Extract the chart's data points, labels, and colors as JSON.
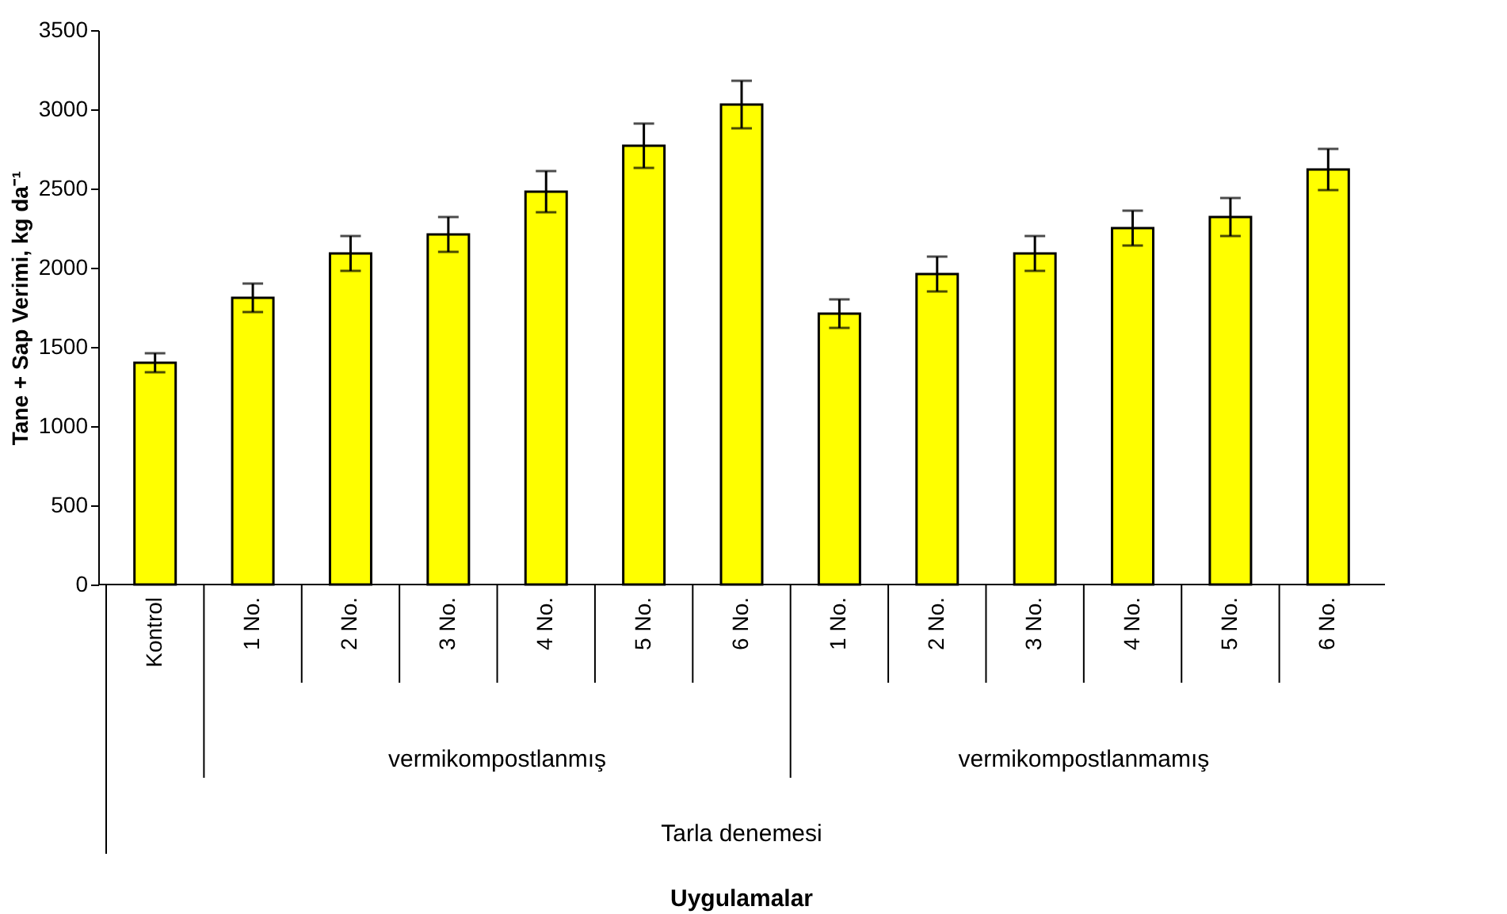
{
  "chart_data": {
    "type": "bar",
    "ylabel": "Tane + Sap Verimi, kg da⁻¹",
    "categories": [
      "Kontrol",
      "1 No.",
      "2 No.",
      "3 No.",
      "4 No.",
      "5 No.",
      "6 No.",
      "1 No.",
      "2 No.",
      "3 No.",
      "4 No.",
      "5 No.",
      "6 No."
    ],
    "values": [
      1400,
      1810,
      2090,
      2210,
      2480,
      2770,
      3030,
      1710,
      1960,
      2090,
      2250,
      2320,
      2620
    ],
    "errors": [
      60,
      90,
      110,
      110,
      130,
      140,
      150,
      90,
      110,
      110,
      110,
      120,
      130
    ],
    "color": "#ffff00",
    "annotations": [
      "vermikompostlanmış",
      "vermikompostlanmamış",
      "Tarla denemesi",
      "Uygulamalar"
    ],
    "ylim": [
      0,
      3500
    ],
    "yticks": [
      0,
      500,
      1000,
      1500,
      2000,
      2500,
      3000,
      3500
    ],
    "grid": false
  }
}
